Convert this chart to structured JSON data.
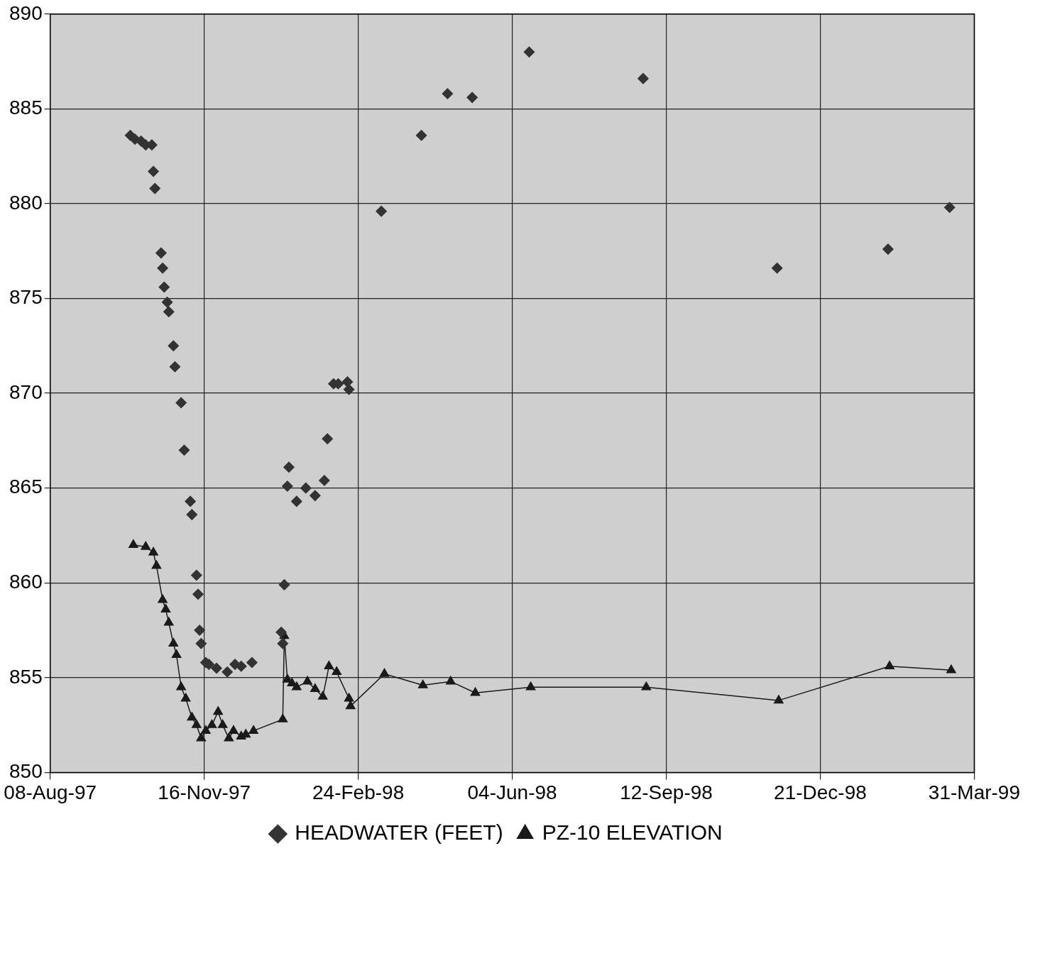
{
  "chart_data": {
    "type": "line",
    "xlim": [
      "1997-08-08",
      "1999-03-31"
    ],
    "xticks": [
      {
        "value": "1997-08-08",
        "label": "08-Aug-97"
      },
      {
        "value": "1997-11-16",
        "label": "16-Nov-97"
      },
      {
        "value": "1998-02-24",
        "label": "24-Feb-98"
      },
      {
        "value": "1998-06-04",
        "label": "04-Jun-98"
      },
      {
        "value": "1998-09-12",
        "label": "12-Sep-98"
      },
      {
        "value": "1998-12-21",
        "label": "21-Dec-98"
      },
      {
        "value": "1999-03-31",
        "label": "31-Mar-99"
      }
    ],
    "ylim": [
      850,
      890
    ],
    "yticks": [
      850,
      855,
      860,
      865,
      870,
      875,
      880,
      885,
      890
    ],
    "grid": true,
    "legend": "bottom",
    "series": [
      {
        "name": "HEADWATER (FEET)",
        "type": "scatter",
        "marker": "diamond",
        "color": "#333333",
        "x": [
          "1997-09-29",
          "1997-10-02",
          "1997-10-06",
          "1997-10-09",
          "1997-10-13",
          "1997-10-14",
          "1997-10-15",
          "1997-10-19",
          "1997-10-20",
          "1997-10-21",
          "1997-10-23",
          "1997-10-24",
          "1997-10-27",
          "1997-10-28",
          "1997-11-01",
          "1997-11-03",
          "1997-11-07",
          "1997-11-08",
          "1997-11-11",
          "1997-11-12",
          "1997-11-13",
          "1997-11-14",
          "1997-11-17",
          "1997-11-19",
          "1997-11-24",
          "1997-12-01",
          "1997-12-06",
          "1997-12-10",
          "1997-12-17",
          "1998-01-05",
          "1998-01-06",
          "1998-01-07",
          "1998-01-09",
          "1998-01-10",
          "1998-01-15",
          "1998-01-21",
          "1998-01-27",
          "1998-02-02",
          "1998-02-04",
          "1998-02-08",
          "1998-02-11",
          "1998-02-17",
          "1998-02-18",
          "1998-03-11",
          "1998-04-06",
          "1998-04-23",
          "1998-05-09",
          "1998-06-15",
          "1998-08-28",
          "1998-11-23",
          "1999-02-03",
          "1999-03-15"
        ],
        "values": [
          883.6,
          883.4,
          883.3,
          883.1,
          883.1,
          881.7,
          880.8,
          877.4,
          876.6,
          875.6,
          874.8,
          874.3,
          872.5,
          871.4,
          869.5,
          867.0,
          864.3,
          863.6,
          860.4,
          859.4,
          857.5,
          856.8,
          855.8,
          855.7,
          855.5,
          855.3,
          855.7,
          855.6,
          855.8,
          857.4,
          856.8,
          859.9,
          865.1,
          866.1,
          864.3,
          865.0,
          864.6,
          865.4,
          867.6,
          870.5,
          870.5,
          870.6,
          870.2,
          879.6,
          883.6,
          885.8,
          885.6,
          888.0,
          886.6,
          876.6,
          877.6,
          879.8
        ]
      },
      {
        "name": "PZ-10 ELEVATION",
        "marker": "triangle",
        "line_style": "solid",
        "color": "#1a1a1a",
        "x": [
          "1997-10-01",
          "1997-10-09",
          "1997-10-14",
          "1997-10-16",
          "1997-10-20",
          "1997-10-22",
          "1997-10-24",
          "1997-10-27",
          "1997-10-29",
          "1997-11-01",
          "1997-11-04",
          "1997-11-08",
          "1997-11-11",
          "1997-11-14",
          "1997-11-17",
          "1997-11-21",
          "1997-11-25",
          "1997-11-28",
          "1997-12-02",
          "1997-12-05",
          "1997-12-10",
          "1997-12-13",
          "1997-12-18",
          "1998-01-06",
          "1998-01-07",
          "1998-01-09",
          "1998-01-12",
          "1998-01-15",
          "1998-01-22",
          "1998-01-27",
          "1998-02-01",
          "1998-02-05",
          "1998-02-10",
          "1998-02-18",
          "1998-02-19",
          "1998-03-13",
          "1998-04-07",
          "1998-04-25",
          "1998-05-11",
          "1998-06-16",
          "1998-08-30",
          "1998-11-24",
          "1999-02-04",
          "1999-03-16"
        ],
        "values": [
          862.0,
          861.9,
          861.6,
          860.9,
          859.1,
          858.6,
          857.9,
          856.8,
          856.2,
          854.5,
          853.9,
          852.9,
          852.5,
          851.8,
          852.2,
          852.5,
          853.2,
          852.5,
          851.8,
          852.2,
          851.9,
          852.0,
          852.2,
          852.8,
          857.2,
          854.9,
          854.7,
          854.5,
          854.8,
          854.4,
          854.0,
          855.6,
          855.3,
          853.9,
          853.5,
          855.2,
          854.6,
          854.8,
          854.2,
          854.5,
          854.5,
          853.8,
          855.6,
          855.4
        ]
      }
    ]
  }
}
